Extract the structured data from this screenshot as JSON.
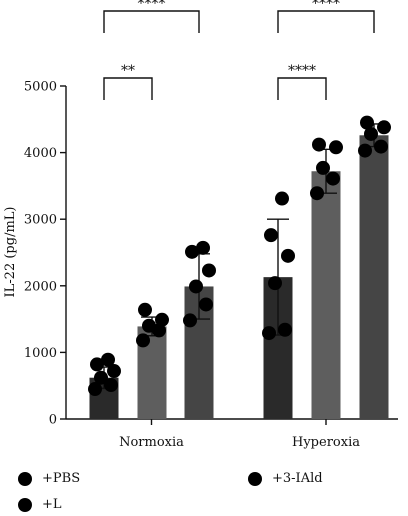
{
  "chart_data": {
    "type": "bar",
    "ylabel": "IL-22 (pg/mL)",
    "ylim": [
      0,
      5000
    ],
    "yticks": [
      0,
      1000,
      2000,
      3000,
      4000,
      5000
    ],
    "groups": [
      "Normoxia",
      "Hyperoxia"
    ],
    "series": [
      {
        "name": "+PBS",
        "color": "#2a2a2a",
        "values": [
          620,
          2130
        ],
        "err": [
          160,
          870
        ],
        "points": [
          [
            450,
            510,
            620,
            720,
            820,
            890
          ],
          [
            1290,
            1340,
            2040,
            2450,
            2760,
            3310
          ]
        ]
      },
      {
        "name": "+3-IAld",
        "color": "#5e5e5e",
        "values": [
          1390,
          3720
        ],
        "err": [
          140,
          330
        ],
        "points": [
          [
            1180,
            1330,
            1400,
            1490,
            1640
          ],
          [
            3390,
            3610,
            3770,
            4080,
            4120
          ]
        ]
      },
      {
        "name": "+L",
        "color": "#454545",
        "values": [
          1990,
          4260
        ],
        "err": [
          490,
          170
        ],
        "points": [
          [
            1480,
            1720,
            1990,
            2230,
            2510,
            2570
          ],
          [
            4030,
            4090,
            4280,
            4380,
            4450
          ]
        ]
      }
    ],
    "significance": [
      {
        "group": 0,
        "from": 0,
        "to": 1,
        "label": "**"
      },
      {
        "group": 0,
        "from": 0,
        "to": 2,
        "label": "****"
      },
      {
        "group": 1,
        "from": 0,
        "to": 1,
        "label": "****"
      },
      {
        "group": 1,
        "from": 0,
        "to": 2,
        "label": "****"
      }
    ],
    "legend_position": "bottom",
    "grid": false
  },
  "legend": {
    "pbs_label": "+PBS",
    "iald_label": "+3-IAld",
    "l_label": "+L"
  }
}
